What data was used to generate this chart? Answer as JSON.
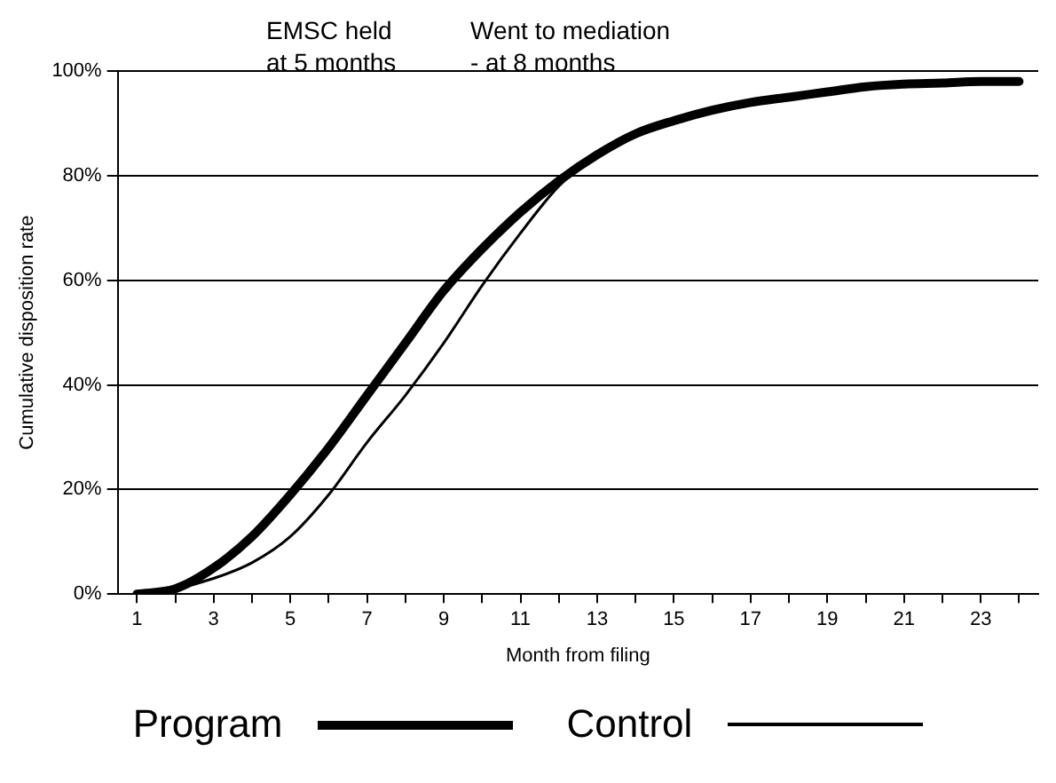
{
  "chart_data": {
    "type": "line",
    "xlabel": "Month from filing",
    "ylabel": "Cumulative disposition rate",
    "x": [
      1,
      2,
      3,
      4,
      5,
      6,
      7,
      8,
      9,
      10,
      11,
      12,
      13,
      14,
      15,
      16,
      17,
      18,
      19,
      20,
      21,
      22,
      23,
      24
    ],
    "xlim": [
      0.5,
      24.5
    ],
    "xticks": [
      1,
      {
        "value": 2,
        "label": null
      },
      3,
      {
        "value": 4,
        "label": null
      },
      5,
      {
        "value": 6,
        "label": null
      },
      7,
      {
        "value": 8,
        "label": null
      },
      9,
      {
        "value": 10,
        "label": null
      },
      11,
      {
        "value": 12,
        "label": null
      },
      13,
      {
        "value": 14,
        "label": null
      },
      15,
      {
        "value": 16,
        "label": null
      },
      17,
      {
        "value": 18,
        "label": null
      },
      19,
      {
        "value": 20,
        "label": null
      },
      21,
      {
        "value": 22,
        "label": null
      },
      23,
      {
        "value": 24,
        "label": null
      }
    ],
    "series": [
      {
        "name": "Program",
        "color": "#000000",
        "values": [
          0,
          1,
          5,
          11,
          19,
          28,
          38,
          48,
          58,
          66,
          73,
          79,
          84,
          88,
          90.5,
          92.5,
          94,
          95,
          96,
          97,
          97.5,
          97.7,
          98,
          98
        ]
      },
      {
        "name": "Control",
        "color": "#000000",
        "values": [
          0,
          1,
          3,
          6,
          11,
          19,
          29,
          38,
          48,
          59,
          69,
          78,
          84,
          88,
          90,
          92,
          93.5,
          95,
          96,
          97,
          97.5,
          97.7,
          98,
          98
        ]
      }
    ],
    "ylim": [
      0,
      100
    ],
    "yticks": [
      {
        "value": 0,
        "label": "0%"
      },
      {
        "value": 20,
        "label": "20%"
      },
      {
        "value": 40,
        "label": "40%"
      },
      {
        "value": 60,
        "label": "60%"
      },
      {
        "value": 80,
        "label": "80%"
      },
      {
        "value": 100,
        "label": "100%"
      }
    ],
    "grid": "y",
    "legend": "bottom",
    "marker": "none",
    "line_style": "solid",
    "annotations": [
      "EMSC held\nat 5 months",
      "Went to mediation\n- at 8 months"
    ]
  }
}
